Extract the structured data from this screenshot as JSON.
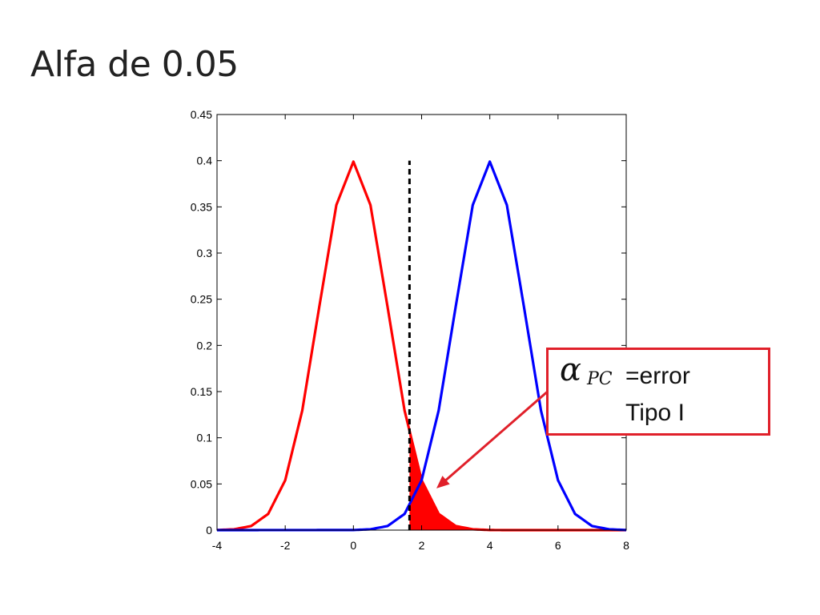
{
  "slide": {
    "title": "Alfa de 0.05"
  },
  "callout": {
    "symbol": "α",
    "subscript": "PC",
    "line1": "=error",
    "line2": "Tipo I"
  },
  "chart_data": {
    "type": "line",
    "title": "",
    "xlabel": "",
    "ylabel": "",
    "xlim": [
      -4,
      8
    ],
    "ylim": [
      0,
      0.45
    ],
    "xticks": [
      -4,
      -2,
      0,
      2,
      4,
      6,
      8
    ],
    "yticks": [
      0,
      0.05,
      0.1,
      0.15,
      0.2,
      0.25,
      0.3,
      0.35,
      0.4,
      0.45
    ],
    "ytick_labels": [
      "0",
      "0.05",
      "0.1",
      "0.15",
      "0.2",
      "0.25",
      "0.3",
      "0.35",
      "0.4",
      "0.45"
    ],
    "grid": false,
    "series": [
      {
        "color": "#ff0000",
        "x": [
          -4.0,
          -3.5,
          -3.0,
          -2.5,
          -2.0,
          -1.5,
          -1.0,
          -0.5,
          0.0,
          0.5,
          1.0,
          1.5,
          2.0,
          2.5,
          3.0,
          3.5,
          4.0,
          4.5,
          5.0,
          6.0,
          8.0
        ],
        "y": [
          0.0001,
          0.0009,
          0.0044,
          0.0175,
          0.054,
          0.1295,
          0.242,
          0.352,
          0.399,
          0.352,
          0.242,
          0.1295,
          0.054,
          0.0175,
          0.0044,
          0.0009,
          0.0001,
          0.0,
          0.0,
          0.0,
          0.0
        ]
      },
      {
        "color": "#0000ff",
        "x": [
          -4.0,
          0.0,
          0.5,
          1.0,
          1.5,
          2.0,
          2.5,
          3.0,
          3.5,
          4.0,
          4.5,
          5.0,
          5.5,
          6.0,
          6.5,
          7.0,
          7.5,
          8.0
        ],
        "y": [
          0.0,
          0.0001,
          0.0009,
          0.0044,
          0.0175,
          0.054,
          0.1295,
          0.242,
          0.352,
          0.399,
          0.352,
          0.242,
          0.1295,
          0.054,
          0.0175,
          0.0044,
          0.0009,
          0.0001
        ]
      }
    ],
    "critical_value": {
      "x": 1.645,
      "y_top": 0.4,
      "color": "#000000",
      "style": "dashed"
    },
    "shaded_region": {
      "x_from": 1.645,
      "x_to": 4.0,
      "under_series": 0,
      "color": "#ff0000"
    },
    "arrow": {
      "color": "#e0202a",
      "from_box": "callout",
      "to": [
        2.2,
        0.04
      ]
    }
  }
}
